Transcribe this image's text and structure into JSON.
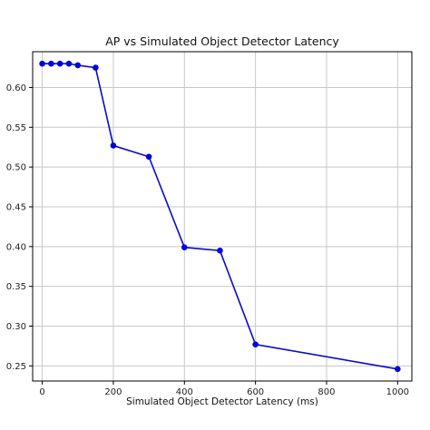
{
  "chart_data": {
    "type": "line",
    "title": "AP vs Simulated Object Detector Latency",
    "xlabel": "Simulated Object Detector Latency (ms)",
    "ylabel": "",
    "xlim": [
      -27,
      1040
    ],
    "ylim": [
      0.231,
      0.645
    ],
    "x_ticks": [
      0,
      200,
      400,
      600,
      800,
      1000
    ],
    "x_tick_labels": [
      "0",
      "200",
      "400",
      "600",
      "800",
      "1000"
    ],
    "y_ticks": [
      0.25,
      0.3,
      0.35,
      0.4,
      0.45,
      0.5,
      0.55,
      0.6
    ],
    "y_tick_labels": [
      "0.25",
      "0.30",
      "0.35",
      "0.40",
      "0.45",
      "0.50",
      "0.55",
      "0.60"
    ],
    "grid": true,
    "colors": {
      "line": "#0a0acd",
      "marker": "#0000e0",
      "grid": "#c8c8c8",
      "axis": "#000000"
    },
    "series": [
      {
        "x": [
          0,
          25,
          50,
          75,
          100,
          150,
          200,
          300,
          400,
          500,
          600,
          1000
        ],
        "y": [
          0.63,
          0.63,
          0.63,
          0.63,
          0.628,
          0.625,
          0.527,
          0.513,
          0.399,
          0.395,
          0.277,
          0.246
        ]
      }
    ]
  }
}
